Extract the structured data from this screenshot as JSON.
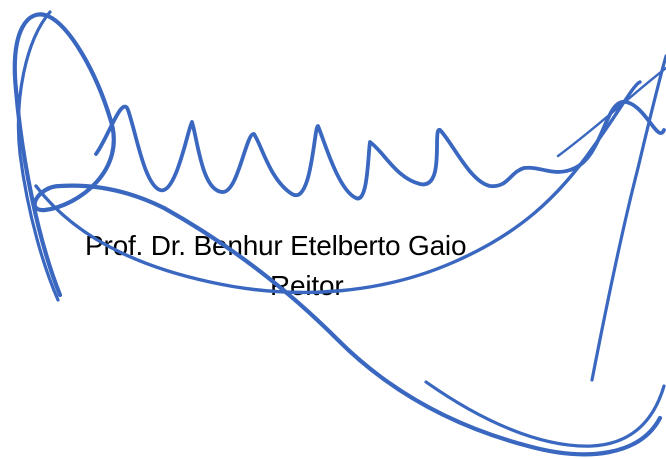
{
  "signature": {
    "name": "Prof. Dr. Benhur Etelberto Gaio",
    "title": "Reitor",
    "stroke_color": "#3A67BF"
  }
}
